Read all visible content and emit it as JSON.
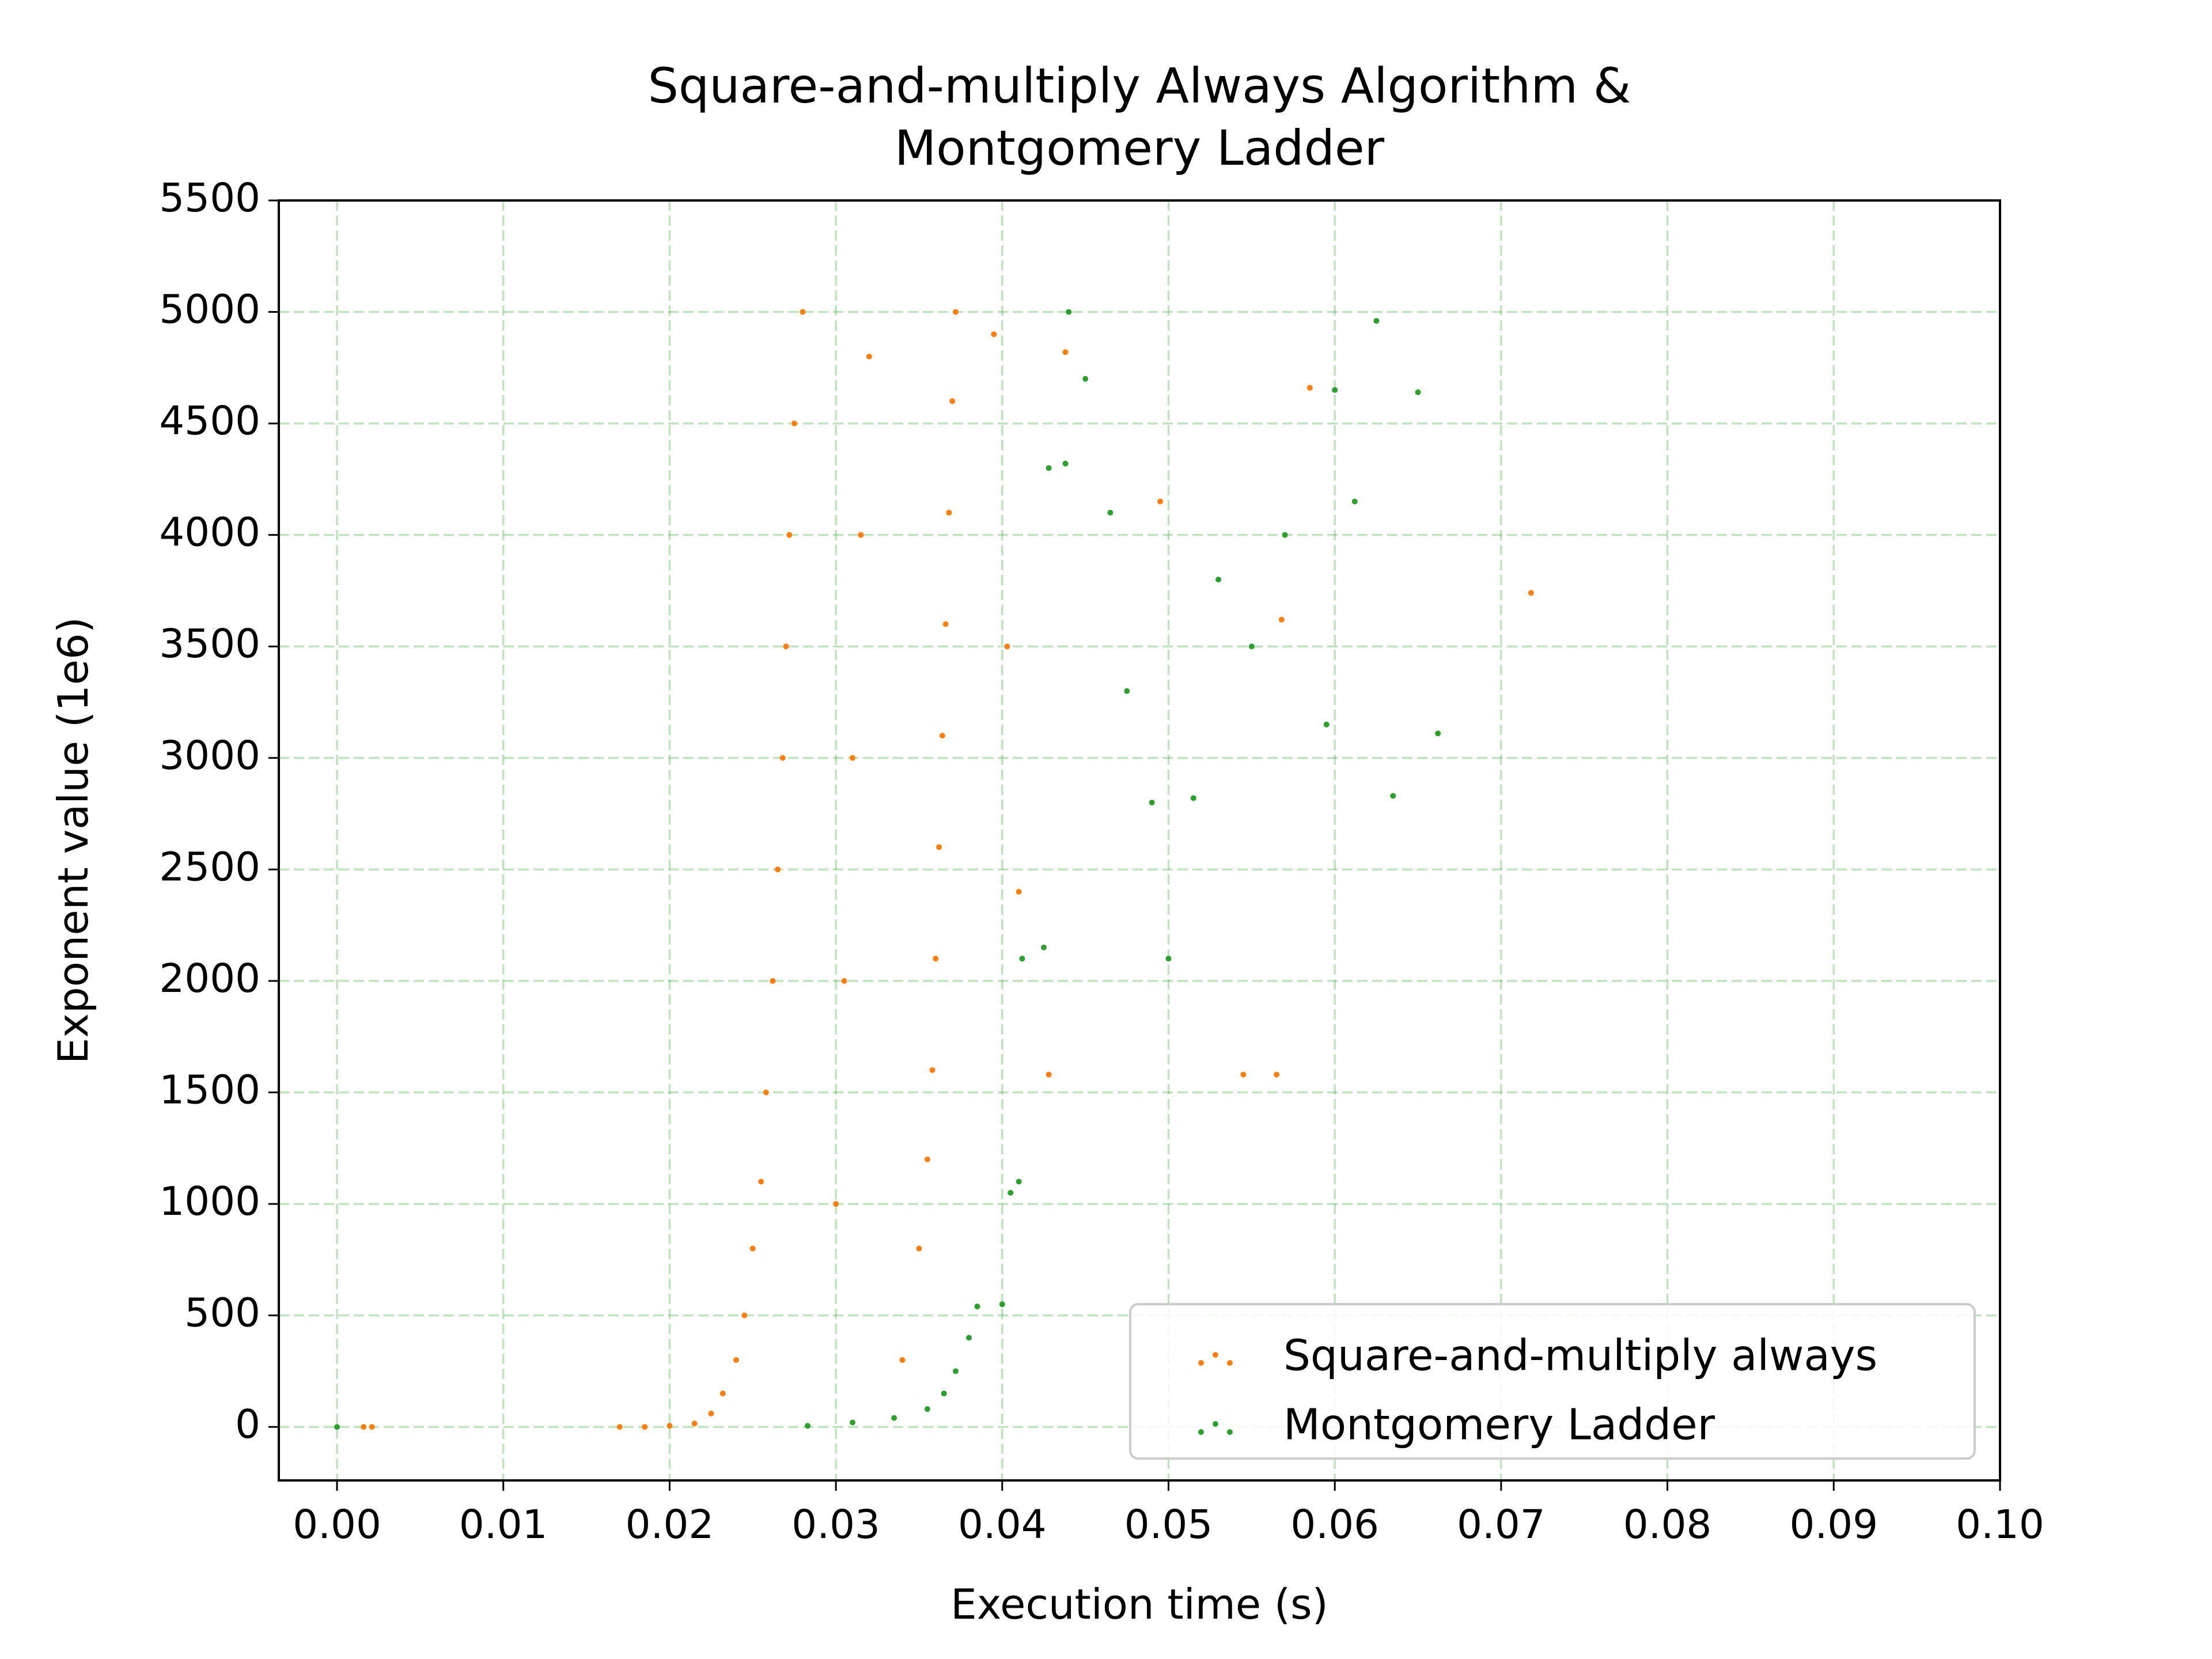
{
  "chart_data": {
    "type": "scatter",
    "title_line1": "Square-and-multiply Always Algorithm &",
    "title_line2": "Montgomery Ladder",
    "xlabel": "Execution time (s)",
    "ylabel": "Exponent value (1e6)",
    "xlim": [
      -0.0035,
      0.1
    ],
    "ylim": [
      -240,
      5500
    ],
    "xticks": [
      0.0,
      0.01,
      0.02,
      0.03,
      0.04,
      0.05,
      0.06,
      0.07,
      0.08,
      0.09,
      0.1
    ],
    "xtick_labels": [
      "0.00",
      "0.01",
      "0.02",
      "0.03",
      "0.04",
      "0.05",
      "0.06",
      "0.07",
      "0.08",
      "0.09",
      "0.10"
    ],
    "yticks": [
      0,
      500,
      1000,
      1500,
      2000,
      2500,
      3000,
      3500,
      4000,
      4500,
      5000,
      5500
    ],
    "ytick_labels": [
      "0",
      "500",
      "1000",
      "1500",
      "2000",
      "2500",
      "3000",
      "3500",
      "4000",
      "4500",
      "5000",
      "5500"
    ],
    "grid": true,
    "grid_color": "#2ca02c",
    "legend_position": "lower right",
    "series": [
      {
        "name": "Square-and-multiply always",
        "color": "#ff7f0e",
        "description_of_cloud": "dense band from ~0.017 s at exponent 0 widening to 0.025–0.037 s for exponents up to 5000",
        "points": [
          [
            0.0016,
            0
          ],
          [
            0.0021,
            0
          ],
          [
            0.017,
            0
          ],
          [
            0.0185,
            0
          ],
          [
            0.02,
            5
          ],
          [
            0.0215,
            15
          ],
          [
            0.0225,
            60
          ],
          [
            0.0232,
            150
          ],
          [
            0.024,
            300
          ],
          [
            0.0245,
            500
          ],
          [
            0.025,
            800
          ],
          [
            0.0255,
            1100
          ],
          [
            0.0258,
            1500
          ],
          [
            0.0262,
            2000
          ],
          [
            0.0265,
            2500
          ],
          [
            0.0268,
            3000
          ],
          [
            0.027,
            3500
          ],
          [
            0.0272,
            4000
          ],
          [
            0.0275,
            4500
          ],
          [
            0.028,
            5000
          ],
          [
            0.034,
            300
          ],
          [
            0.035,
            800
          ],
          [
            0.0355,
            1200
          ],
          [
            0.0358,
            1600
          ],
          [
            0.036,
            2100
          ],
          [
            0.0362,
            2600
          ],
          [
            0.0364,
            3100
          ],
          [
            0.0366,
            3600
          ],
          [
            0.0368,
            4100
          ],
          [
            0.037,
            4600
          ],
          [
            0.0372,
            5000
          ],
          [
            0.03,
            1000
          ],
          [
            0.0305,
            2000
          ],
          [
            0.031,
            3000
          ],
          [
            0.0315,
            4000
          ],
          [
            0.032,
            4800
          ],
          [
            0.0395,
            4900
          ],
          [
            0.0403,
            3500
          ],
          [
            0.041,
            2400
          ],
          [
            0.0428,
            1580
          ],
          [
            0.0438,
            4820
          ],
          [
            0.0495,
            4150
          ],
          [
            0.0545,
            1580
          ],
          [
            0.0565,
            1580
          ],
          [
            0.0568,
            3620
          ],
          [
            0.0585,
            4660
          ],
          [
            0.0718,
            3740
          ]
        ]
      },
      {
        "name": "Montgomery Ladder",
        "color": "#2ca02c",
        "description_of_cloud": "stepped vertical clusters near 0.038–0.044 s with sparse scatter to ~0.066 s",
        "points": [
          [
            0.0,
            0
          ],
          [
            0.0283,
            5
          ],
          [
            0.031,
            20
          ],
          [
            0.0335,
            40
          ],
          [
            0.0355,
            80
          ],
          [
            0.0365,
            150
          ],
          [
            0.0372,
            250
          ],
          [
            0.038,
            400
          ],
          [
            0.0385,
            540
          ],
          [
            0.04,
            550
          ],
          [
            0.0405,
            1050
          ],
          [
            0.041,
            1100
          ],
          [
            0.0412,
            2100
          ],
          [
            0.0425,
            2150
          ],
          [
            0.0428,
            4300
          ],
          [
            0.0438,
            4320
          ],
          [
            0.044,
            5000
          ],
          [
            0.045,
            4700
          ],
          [
            0.0465,
            4100
          ],
          [
            0.0475,
            3300
          ],
          [
            0.049,
            2800
          ],
          [
            0.05,
            2100
          ],
          [
            0.0515,
            2820
          ],
          [
            0.053,
            3800
          ],
          [
            0.055,
            3500
          ],
          [
            0.057,
            4000
          ],
          [
            0.0595,
            3150
          ],
          [
            0.06,
            4650
          ],
          [
            0.0612,
            4150
          ],
          [
            0.0625,
            4960
          ],
          [
            0.0635,
            2830
          ],
          [
            0.065,
            4640
          ],
          [
            0.0662,
            3110
          ]
        ]
      }
    ]
  }
}
